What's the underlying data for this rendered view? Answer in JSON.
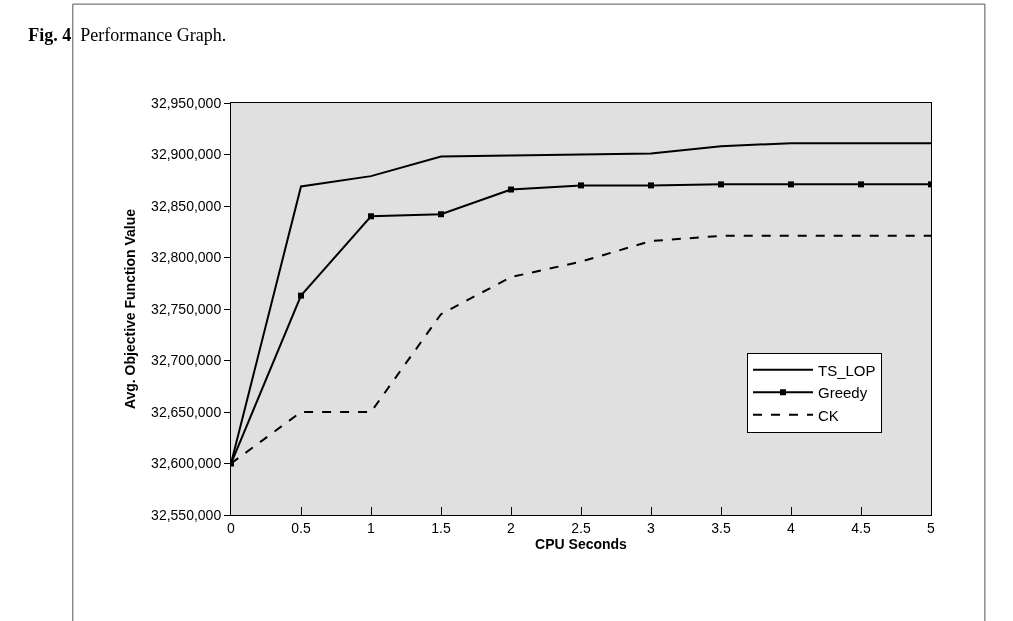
{
  "chart_data": {
    "type": "line",
    "title": "Fig. 4  Performance Graph.",
    "xlabel": "CPU Seconds",
    "ylabel": "Avg. Objective Function Value",
    "x": [
      0,
      0.5,
      1,
      1.5,
      2,
      2.5,
      3,
      3.5,
      4,
      4.5,
      5
    ],
    "series": [
      {
        "name": "TS_LOP",
        "color": "#000000",
        "marker": "none",
        "line_style": "solid",
        "values": [
          32600000,
          32869000,
          32879000,
          32898000,
          32899000,
          32900000,
          32901000,
          32908000,
          32911000,
          32911000,
          32911000
        ]
      },
      {
        "name": "Greedy",
        "color": "#000000",
        "marker": "square",
        "line_style": "solid",
        "values": [
          32600000,
          32763000,
          32840000,
          32842000,
          32866000,
          32870000,
          32870000,
          32871000,
          32871000,
          32871000,
          32871000
        ]
      },
      {
        "name": "CK",
        "color": "#000000",
        "marker": "none",
        "line_style": "dashed",
        "values": [
          32600000,
          32650000,
          32650000,
          32745000,
          32781000,
          32796000,
          32816000,
          32821000,
          32821000,
          32821000,
          32821000
        ]
      }
    ],
    "xlim": [
      0,
      5
    ],
    "xticks": [
      0,
      0.5,
      1,
      1.5,
      2,
      2.5,
      3,
      3.5,
      4,
      4.5,
      5
    ],
    "ylim": [
      32550000,
      32950000
    ],
    "yticks": [
      {
        "value": 32550000,
        "label": "32,550,000"
      },
      {
        "value": 32600000,
        "label": "32,600,000"
      },
      {
        "value": 32650000,
        "label": "32,650,000"
      },
      {
        "value": 32700000,
        "label": "32,700,000"
      },
      {
        "value": 32750000,
        "label": "32,750,000"
      },
      {
        "value": 32800000,
        "label": "32,800,000"
      },
      {
        "value": 32850000,
        "label": "32,850,000"
      },
      {
        "value": 32900000,
        "label": "32,900,000"
      },
      {
        "value": 32950000,
        "label": "32,950,000"
      }
    ],
    "grid": false,
    "legend": "bottom right"
  }
}
